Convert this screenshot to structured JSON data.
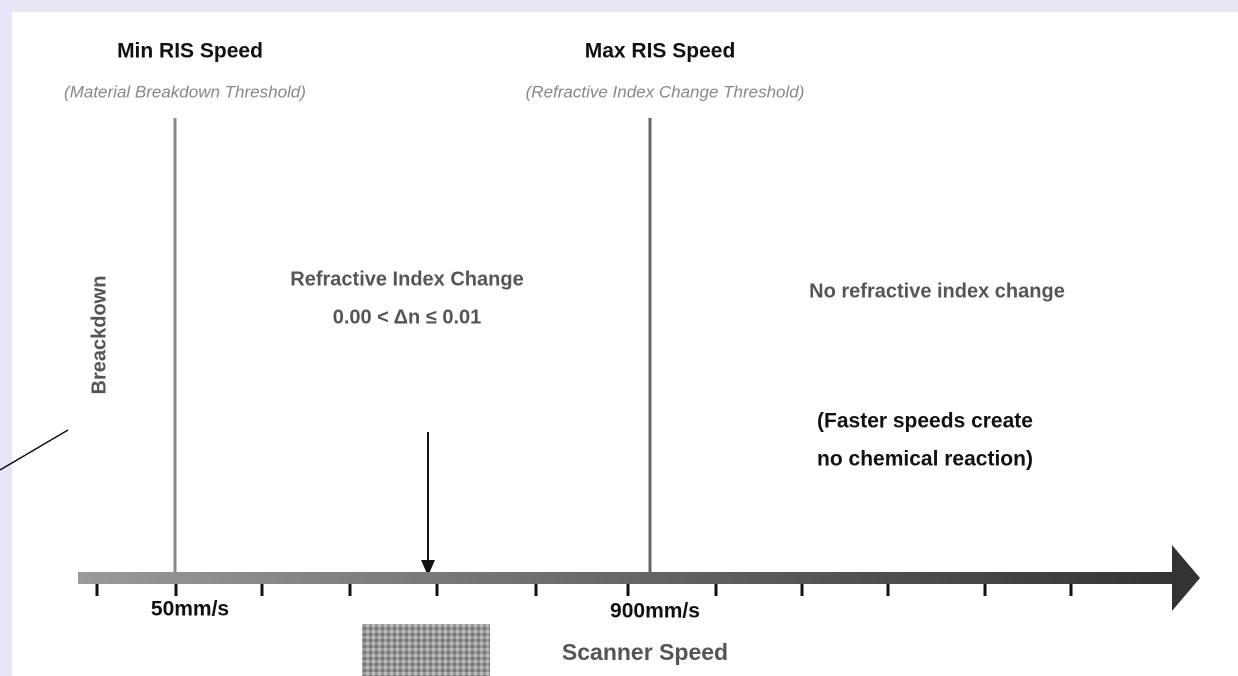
{
  "min_speed": {
    "title": "Min RIS Speed",
    "subtitle": "(Material Breakdown Threshold)",
    "value_label": "50mm/s"
  },
  "max_speed": {
    "title": "Max RIS Speed",
    "subtitle": "(Refractive Index Change Threshold)",
    "value_label": "900mm/s"
  },
  "regions": {
    "breakdown": "Breackdown",
    "refractive_change": [
      "Refractive Index Change",
      "0.00 < Δn ≤ 0.01"
    ],
    "no_change": "No refractive index change",
    "note": [
      "(Faster speeds create",
      "no chemical reaction)"
    ]
  },
  "axis_label": "Scanner Speed"
}
